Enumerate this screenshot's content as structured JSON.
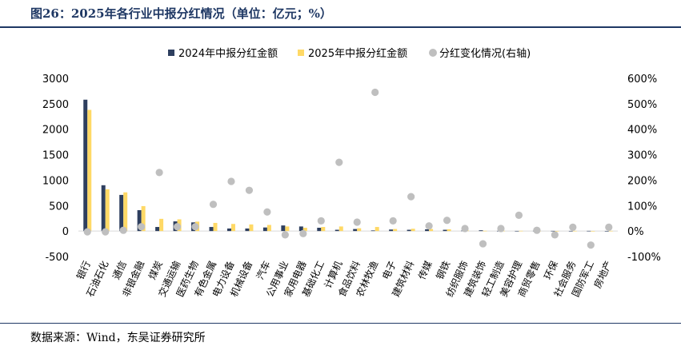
{
  "figure": {
    "title": "图26：2025年各行业中报分红情况（单位：亿元；%）",
    "source": "数据来源：Wind，东吴证券研究所"
  },
  "colors": {
    "series_2024": "#2e3f5f",
    "series_2025": "#ffd966",
    "change": "#bfbfbf",
    "title": "#1f3864"
  },
  "chart_data": {
    "type": "bar",
    "categories": [
      "银行",
      "石油石化",
      "通信",
      "非银金融",
      "煤炭",
      "交通运输",
      "医药生物",
      "有色金属",
      "电力设备",
      "机械设备",
      "汽车",
      "公用事业",
      "家用电器",
      "基础化工",
      "计算机",
      "食品饮料",
      "农林牧渔",
      "电子",
      "建筑材料",
      "传媒",
      "钢铁",
      "纺织服饰",
      "建筑装饰",
      "轻工制造",
      "美容护理",
      "商贸零售",
      "环保",
      "社会服务",
      "国防军工",
      "房地产"
    ],
    "series": [
      {
        "name": "2024年中报分红金额",
        "axis": "left",
        "kind": "bar",
        "values": [
          2580,
          900,
          710,
          410,
          80,
          190,
          170,
          80,
          50,
          50,
          70,
          110,
          90,
          65,
          25,
          40,
          12,
          30,
          25,
          35,
          25,
          8,
          15,
          4,
          3,
          5,
          4,
          3,
          4,
          2
        ]
      },
      {
        "name": "2025年中报分红金额",
        "axis": "left",
        "kind": "bar",
        "values": [
          2380,
          820,
          760,
          490,
          240,
          230,
          185,
          160,
          140,
          130,
          120,
          90,
          65,
          80,
          90,
          55,
          80,
          40,
          45,
          40,
          35,
          10,
          5,
          5,
          5,
          4,
          2,
          4,
          1,
          4
        ]
      },
      {
        "name": "分红变化情况(右轴)",
        "axis": "right",
        "kind": "scatter",
        "values": [
          -3,
          -3,
          3,
          17,
          230,
          17,
          17,
          105,
          195,
          160,
          75,
          -15,
          -10,
          40,
          270,
          35,
          545,
          40,
          135,
          20,
          42,
          10,
          -50,
          10,
          62,
          3,
          -15,
          15,
          -55,
          15
        ]
      }
    ],
    "ylim": [
      -500,
      3000
    ],
    "yticks": [
      "-500",
      "0",
      "500",
      "1000",
      "1500",
      "2000",
      "2500",
      "3000"
    ],
    "y2lim": [
      -100,
      600
    ],
    "y2ticks": [
      "-100%",
      "0%",
      "100%",
      "200%",
      "300%",
      "400%",
      "500%",
      "600%"
    ],
    "legend": "top",
    "grid": false
  }
}
